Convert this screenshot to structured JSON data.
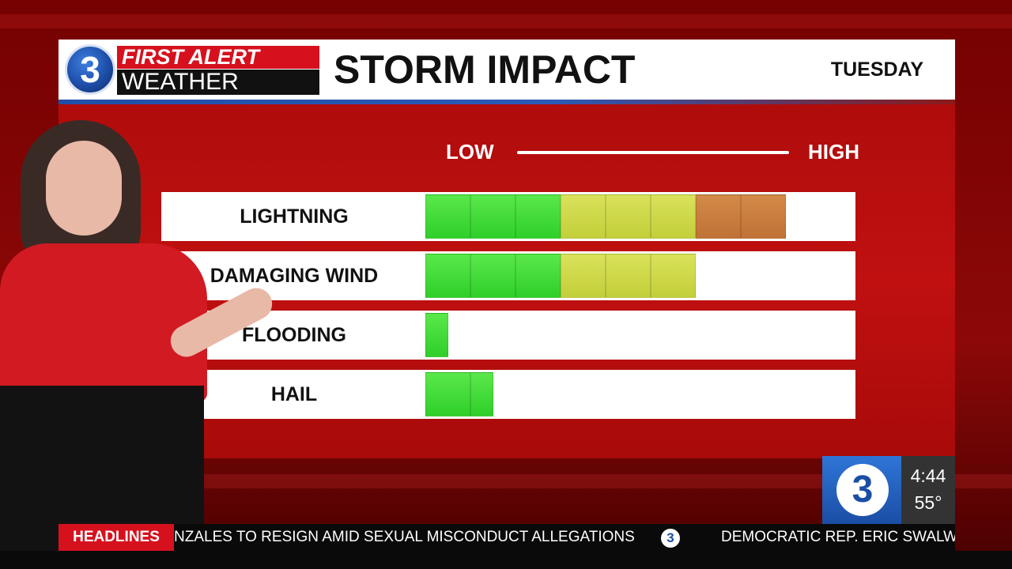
{
  "header": {
    "logo_number": "3",
    "logo_line1": "FIRST ALERT",
    "logo_line2": "WEATHER",
    "title": "STORM IMPACT",
    "day": "TUESDAY"
  },
  "scale": {
    "low_label": "LOW",
    "high_label": "HIGH"
  },
  "impact_rows": [
    {
      "label": "LIGHTNING",
      "level_segments": 8,
      "max_segments": 9
    },
    {
      "label": "DAMAGING WIND",
      "level_segments": 6,
      "max_segments": 9
    },
    {
      "label": "FLOODING",
      "level_segments": 0.5,
      "max_segments": 9
    },
    {
      "label": "HAIL",
      "level_segments": 1.5,
      "max_segments": 9
    }
  ],
  "segment_colors": {
    "green": "#2fcf2a",
    "yellow": "#c3cf3a",
    "orange": "#c07236"
  },
  "bug": {
    "logo_number": "3",
    "time": "4:44",
    "temperature": "55°"
  },
  "ticker": {
    "tag": "HEADLINES",
    "headline1": "NZALES TO RESIGN AMID SEXUAL MISCONDUCT ALLEGATIONS",
    "separator_icon": "3",
    "headline2": "DEMOCRATIC REP. ERIC SWALWE"
  },
  "accent_colors": {
    "brand_red": "#d6111d",
    "brand_blue": "#1b4ea6"
  }
}
